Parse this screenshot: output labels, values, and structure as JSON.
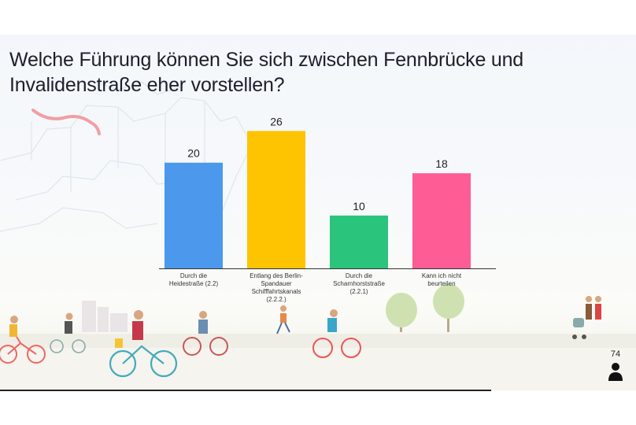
{
  "title": "Welche Führung können Sie sich zwischen Fennbrücke und Invalidenstraße eher vorstellen?",
  "chart_data": {
    "type": "bar",
    "title": "Welche Führung können Sie sich zwischen Fennbrücke und Invalidenstraße eher vorstellen?",
    "categories": [
      [
        "Durch die",
        "Heidestraße (2.2)"
      ],
      [
        "Entlang des Berlin-",
        "Spandauer",
        "Schifffahrtskanals",
        "(2.2.2.)"
      ],
      [
        "Durch die",
        "Scharnhorststraße",
        "(2.2.1)"
      ],
      [
        "Kann ich nicht",
        "beurteilen"
      ]
    ],
    "values": [
      20,
      26,
      10,
      18
    ],
    "colors": [
      "#4b98ec",
      "#fec301",
      "#2bc47c",
      "#fd5c94"
    ],
    "value_labels": true,
    "xlabel": "",
    "ylabel": "",
    "ylim": [
      0,
      28
    ],
    "grid": false,
    "legend": "none"
  },
  "footer": {
    "response_count": "74",
    "icon": "person-icon"
  }
}
